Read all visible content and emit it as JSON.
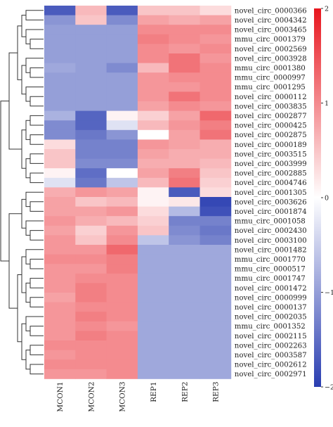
{
  "chart_data": {
    "type": "heatmap",
    "title": "",
    "xlabel": "",
    "ylabel": "",
    "columns": [
      "MCON1",
      "MCON2",
      "MCON3",
      "REP1",
      "REP2",
      "REP3"
    ],
    "rows": [
      "novel_circ_0000366",
      "novel_circ_0004342",
      "novel_circ_0003465",
      "mmu_circ_0001379",
      "novel_circ_0002569",
      "novel_circ_0003928",
      "mmu_circ_0001380",
      "mmu_circ_0000997",
      "mmu_circ_0001295",
      "novel_circ_0000112",
      "novel_circ_0003835",
      "novel_circ_0002877",
      "novel_circ_0000425",
      "novel_circ_0002875",
      "novel_circ_0000189",
      "novel_circ_0003515",
      "novel_circ_0003999",
      "novel_circ_0002885",
      "novel_circ_0004746",
      "novel_circ_0001305",
      "novel_circ_0003626",
      "novel_circ_0001874",
      "mmu_circ_0001058",
      "novel_circ_0002430",
      "novel_circ_0003100",
      "novel_circ_0001482",
      "mmu_circ_0001770",
      "mmu_circ_0000517",
      "mmu_circ_0001747",
      "novel_circ_0001472",
      "novel_circ_0000999",
      "novel_circ_0000137",
      "novel_circ_0002035",
      "mmu_circ_0001352",
      "novel_circ_0002115",
      "novel_circ_0002263",
      "novel_circ_0003587",
      "novel_circ_0002612",
      "novel_circ_0002971"
    ],
    "values": [
      [
        -1.7,
        0.6,
        -1.7,
        0.5,
        0.5,
        0.3
      ],
      [
        -1.1,
        0.5,
        -1.2,
        0.8,
        0.7,
        0.8
      ],
      [
        -1.0,
        -1.0,
        -1.0,
        1.0,
        1.0,
        1.0
      ],
      [
        -1.0,
        -1.0,
        -1.0,
        1.1,
        1.0,
        0.9
      ],
      [
        -1.0,
        -1.0,
        -1.0,
        1.0,
        0.9,
        1.0
      ],
      [
        -1.0,
        -1.0,
        -1.0,
        1.0,
        1.2,
        0.9
      ],
      [
        -0.9,
        -1.0,
        -1.2,
        0.6,
        1.2,
        1.0
      ],
      [
        -1.0,
        -1.0,
        -1.0,
        0.9,
        1.0,
        1.0
      ],
      [
        -1.0,
        -1.0,
        -1.0,
        0.9,
        0.9,
        1.0
      ],
      [
        -1.0,
        -1.0,
        -1.0,
        0.9,
        1.2,
        1.0
      ],
      [
        -1.0,
        -1.0,
        -1.0,
        0.8,
        1.0,
        0.9
      ],
      [
        -0.8,
        -1.6,
        0.1,
        0.4,
        0.8,
        1.3
      ],
      [
        -1.2,
        -1.6,
        -0.3,
        0.6,
        0.9,
        1.1
      ],
      [
        -1.2,
        -1.4,
        -1.1,
        0.0,
        0.8,
        1.2
      ],
      [
        0.3,
        -1.3,
        -1.3,
        0.9,
        0.8,
        0.7
      ],
      [
        0.5,
        -1.3,
        -1.3,
        0.8,
        0.7,
        0.7
      ],
      [
        0.5,
        -1.2,
        -1.2,
        0.7,
        0.7,
        0.6
      ],
      [
        0.1,
        -1.5,
        0.0,
        0.8,
        1.1,
        0.5
      ],
      [
        -0.3,
        -1.4,
        -0.6,
        0.6,
        1.2,
        0.4
      ],
      [
        0.7,
        0.9,
        0.8,
        0.1,
        -1.7,
        0.3
      ],
      [
        0.8,
        0.5,
        0.6,
        0.1,
        0.2,
        -1.9
      ],
      [
        0.8,
        0.8,
        0.9,
        0.3,
        -0.7,
        -1.8
      ],
      [
        0.9,
        0.7,
        0.6,
        0.4,
        -1.3,
        -1.3
      ],
      [
        0.8,
        0.4,
        0.9,
        0.5,
        -1.2,
        -1.4
      ],
      [
        0.9,
        0.5,
        1.0,
        -0.6,
        -1.1,
        -1.3
      ],
      [
        0.9,
        0.9,
        1.3,
        -0.9,
        -0.9,
        -0.9
      ],
      [
        1.0,
        1.0,
        1.1,
        -0.9,
        -0.9,
        -0.9
      ],
      [
        0.9,
        0.9,
        1.1,
        -0.9,
        -0.9,
        -0.9
      ],
      [
        0.9,
        1.0,
        1.0,
        -0.9,
        -0.9,
        -0.9
      ],
      [
        0.9,
        1.1,
        1.0,
        -0.9,
        -0.9,
        -0.9
      ],
      [
        0.8,
        1.1,
        1.0,
        -0.9,
        -0.9,
        -0.9
      ],
      [
        0.9,
        1.0,
        1.0,
        -0.9,
        -0.9,
        -0.9
      ],
      [
        0.9,
        1.1,
        1.0,
        -0.9,
        -0.9,
        -0.9
      ],
      [
        0.9,
        1.0,
        0.9,
        -0.9,
        -0.9,
        -0.9
      ],
      [
        0.9,
        1.1,
        1.0,
        -0.9,
        -0.9,
        -0.9
      ],
      [
        1.0,
        1.0,
        1.0,
        -0.9,
        -0.9,
        -0.9
      ],
      [
        0.9,
        1.0,
        1.0,
        -0.9,
        -0.9,
        -0.9
      ],
      [
        1.0,
        1.0,
        1.0,
        -0.9,
        -0.9,
        -0.9
      ],
      [
        0.9,
        0.9,
        1.0,
        -0.9,
        -0.9,
        -0.9
      ]
    ],
    "color_scale": {
      "min": -2,
      "max": 2,
      "low_color": "#2a3eb1",
      "mid_color": "#ffffff",
      "high_color": "#e8161e"
    },
    "colorbar_ticks": [
      2,
      1,
      0,
      -1,
      -2
    ],
    "colorbar_tick_labels": [
      "2",
      "1",
      "0",
      "−1",
      "−2"
    ],
    "row_dendrogram": "left",
    "grid": false
  }
}
